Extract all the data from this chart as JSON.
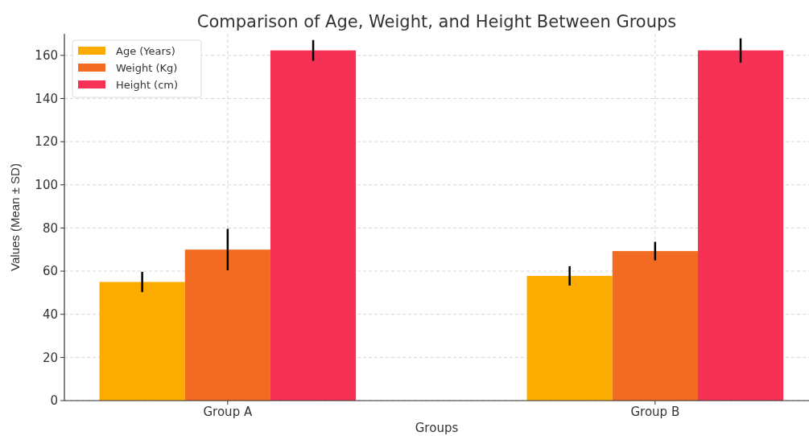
{
  "chart_data": {
    "type": "bar",
    "title": "Comparison of Age, Weight, and Height Between Groups",
    "xlabel": "Groups",
    "ylabel": "Values (Mean ± SD)",
    "categories": [
      "Group A",
      "Group B"
    ],
    "series": [
      {
        "name": "Age (Years)",
        "color": "#fcac00",
        "values": [
          55,
          57.8
        ],
        "errors": [
          4.7,
          4.5
        ]
      },
      {
        "name": "Weight (Kg)",
        "color": "#f26b22",
        "values": [
          70,
          69.3
        ],
        "errors": [
          9.6,
          4.3
        ]
      },
      {
        "name": "Height (cm)",
        "color": "#f53255",
        "values": [
          162.3,
          162.3
        ],
        "errors": [
          4.8,
          5.6
        ]
      }
    ],
    "ylim": [
      0,
      170
    ],
    "yticks": [
      0,
      20,
      40,
      60,
      80,
      100,
      120,
      140,
      160
    ],
    "grid": true,
    "legend": "top left"
  }
}
